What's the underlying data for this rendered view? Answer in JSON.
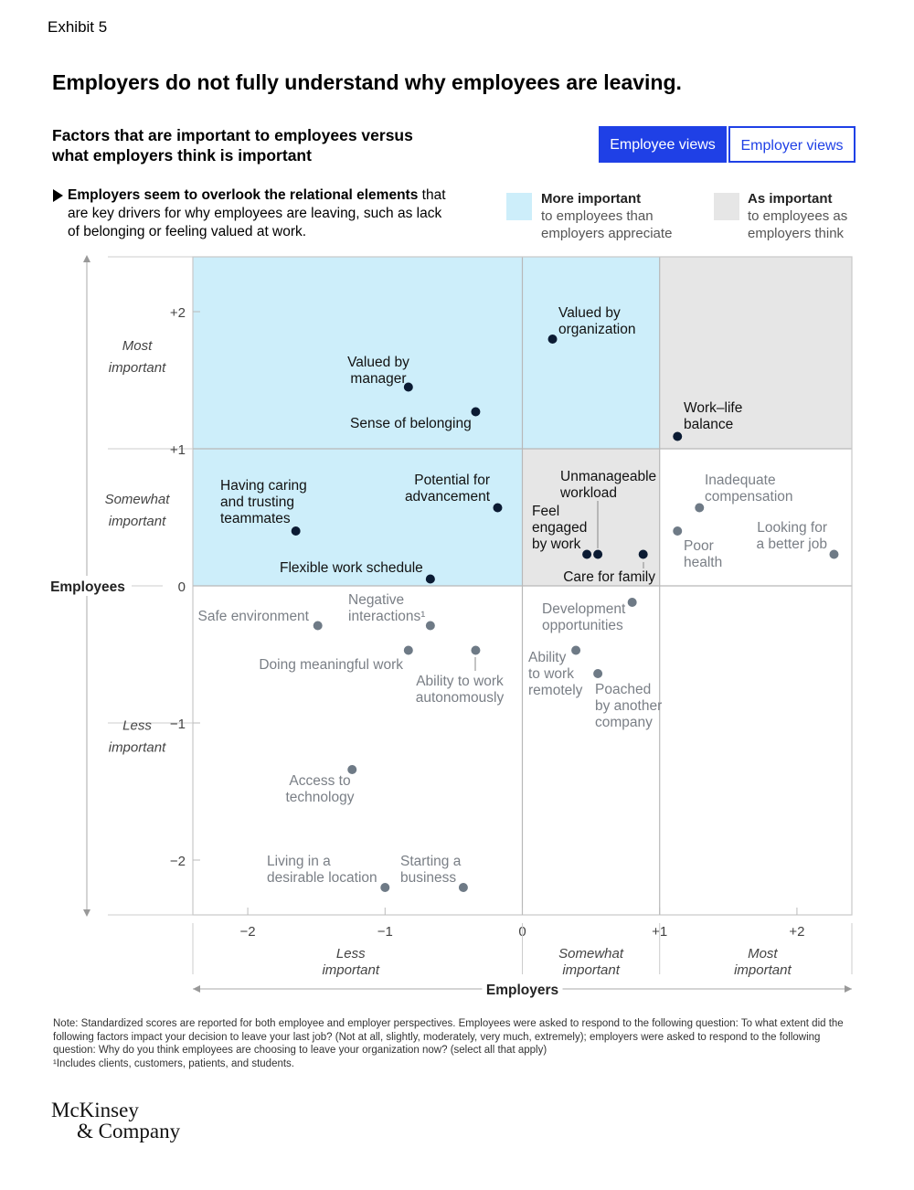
{
  "header": {
    "exhibit": "Exhibit 5",
    "title": "Employers do not fully understand why employees are leaving.",
    "subtitle": "Factors that are important to employees versus what employers think is important"
  },
  "tabs": [
    {
      "label": "Employee views",
      "active": true
    },
    {
      "label": "Employer views",
      "active": false
    }
  ],
  "callout": {
    "bold": "Employers seem to overlook the relational elements",
    "rest": " that are key drivers for why employees are leaving, such as lack of belonging or feeling valued at work."
  },
  "legend": [
    {
      "bold": "More important",
      "text": "to employees than employers appreciate",
      "color": "#cdeefa"
    },
    {
      "bold": "As important",
      "text": "to employees as employers think",
      "color": "#e6e6e6"
    }
  ],
  "colors": {
    "blue_region": "#cdeefa",
    "gray_region": "#e6e6e6",
    "dark_point": "#0b1b33",
    "gray_point": "#6e7a86",
    "accent": "#1f40e6"
  },
  "chart_data": {
    "type": "scatter",
    "xlabel": "Employers",
    "ylabel": "Employees",
    "xlim": [
      -2.4,
      2.4
    ],
    "ylim": [
      -2.4,
      2.4
    ],
    "x_ticks": [
      "−2",
      "−1",
      "0",
      "+1",
      "+2"
    ],
    "y_ticks": [
      "+2",
      "+1",
      "0",
      "−1",
      "−2"
    ],
    "x_categories": [
      "Less important",
      "Somewhat important",
      "Most important"
    ],
    "y_categories": [
      "Most important",
      "Somewhat important",
      "Less important"
    ],
    "regions": [
      {
        "type": "more",
        "x": [
          -2.4,
          0
        ],
        "y": [
          0,
          2.4
        ]
      },
      {
        "type": "more",
        "x": [
          0,
          1
        ],
        "y": [
          1,
          2.4
        ]
      },
      {
        "type": "as",
        "x": [
          1,
          2.4
        ],
        "y": [
          1,
          2.4
        ]
      },
      {
        "type": "as",
        "x": [
          0,
          1
        ],
        "y": [
          0,
          1
        ]
      }
    ],
    "points": [
      {
        "label": "Valued by organization",
        "x": 0.22,
        "y": 1.8,
        "emphasis": true
      },
      {
        "label": "Valued by manager",
        "x": -0.83,
        "y": 1.45,
        "emphasis": true
      },
      {
        "label": "Sense of belonging",
        "x": -0.34,
        "y": 1.27,
        "emphasis": true
      },
      {
        "label": "Work–life balance",
        "x": 1.13,
        "y": 1.09,
        "emphasis": true
      },
      {
        "label": "Potential for advancement",
        "x": -0.18,
        "y": 0.57,
        "emphasis": true
      },
      {
        "label": "Having caring and trusting teammates",
        "x": -1.65,
        "y": 0.4,
        "emphasis": true
      },
      {
        "label": "Flexible work schedule",
        "x": -0.67,
        "y": 0.05,
        "emphasis": true
      },
      {
        "label": "Unmanageable workload",
        "x": 0.55,
        "y": 0.23,
        "emphasis": true
      },
      {
        "label": "Feel engaged by work",
        "x": 0.47,
        "y": 0.23,
        "emphasis": true
      },
      {
        "label": "Care for family",
        "x": 0.88,
        "y": 0.23,
        "emphasis": true
      },
      {
        "label": "Inadequate compensation",
        "x": 1.29,
        "y": 0.57,
        "emphasis": false
      },
      {
        "label": "Poor health",
        "x": 1.13,
        "y": 0.4,
        "emphasis": false
      },
      {
        "label": "Looking for a better job",
        "x": 2.27,
        "y": 0.23,
        "emphasis": false
      },
      {
        "label": "Safe environment",
        "x": -1.49,
        "y": -0.29,
        "emphasis": false
      },
      {
        "label": "Negative interactions¹",
        "x": -0.67,
        "y": -0.29,
        "emphasis": false
      },
      {
        "label": "Doing meaningful work",
        "x": -0.83,
        "y": -0.47,
        "emphasis": false
      },
      {
        "label": "Ability to work autonomously",
        "x": -0.34,
        "y": -0.47,
        "emphasis": false
      },
      {
        "label": "Development opportunities",
        "x": 0.8,
        "y": -0.12,
        "emphasis": false
      },
      {
        "label": "Ability to work remotely",
        "x": 0.39,
        "y": -0.47,
        "emphasis": false
      },
      {
        "label": "Poached by another company",
        "x": 0.55,
        "y": -0.64,
        "emphasis": false
      },
      {
        "label": "Access to technology",
        "x": -1.24,
        "y": -1.34,
        "emphasis": false
      },
      {
        "label": "Living in a desirable location",
        "x": -1.0,
        "y": -2.2,
        "emphasis": false
      },
      {
        "label": "Starting a business",
        "x": -0.43,
        "y": -2.2,
        "emphasis": false
      }
    ]
  },
  "footer": {
    "note": "Note: Standardized scores are reported for both employee and employer perspectives. Employees were asked to respond to the following question: To what extent did the following factors impact your decision to leave your last job? (Not at all, slightly, moderately, very much, extremely); employers were asked to respond to the following question: Why do you think employees are choosing to leave your organization now? (select all that apply)",
    "footnote": "¹Includes clients, customers, patients, and students.",
    "logo_line1": "McKinsey",
    "logo_line2": "& Company"
  }
}
